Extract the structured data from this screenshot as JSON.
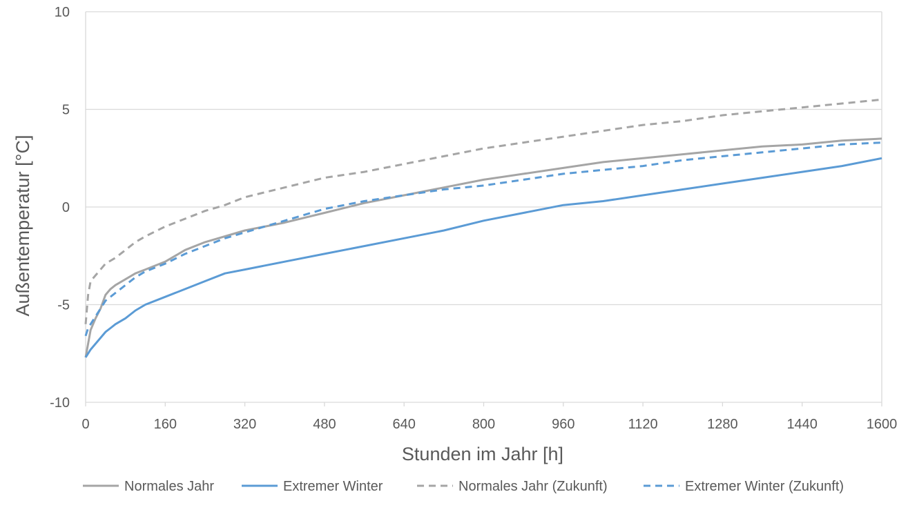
{
  "chart_data": {
    "type": "line",
    "title": "",
    "xlabel": "Stunden im Jahr [h]",
    "ylabel": "Außentemperatur [°C]",
    "xlim": [
      0,
      1600
    ],
    "ylim": [
      -10,
      10
    ],
    "x_ticks": [
      0,
      160,
      320,
      480,
      640,
      800,
      960,
      1120,
      1280,
      1440,
      1600
    ],
    "y_ticks": [
      -10,
      -5,
      0,
      5,
      10
    ],
    "grid": "horizontal",
    "legend_position": "bottom",
    "colors": {
      "gray": "#a5a5a5",
      "blue": "#5b9bd5",
      "grid": "#d9d9d9",
      "text": "#595959"
    },
    "series": [
      {
        "name": "Normales Jahr",
        "color": "#a5a5a5",
        "dash": "solid",
        "x": [
          0,
          5,
          10,
          20,
          30,
          40,
          50,
          60,
          80,
          100,
          120,
          160,
          200,
          240,
          280,
          320,
          400,
          480,
          560,
          640,
          720,
          800,
          880,
          960,
          1040,
          1120,
          1200,
          1280,
          1360,
          1440,
          1520,
          1600
        ],
        "y": [
          -7.7,
          -7.0,
          -6.3,
          -5.7,
          -5.2,
          -4.5,
          -4.2,
          -4.0,
          -3.7,
          -3.4,
          -3.2,
          -2.8,
          -2.2,
          -1.8,
          -1.5,
          -1.2,
          -0.8,
          -0.3,
          0.2,
          0.6,
          1.0,
          1.4,
          1.7,
          2.0,
          2.3,
          2.5,
          2.7,
          2.9,
          3.1,
          3.2,
          3.4,
          3.5
        ]
      },
      {
        "name": "Extremer Winter",
        "color": "#5b9bd5",
        "dash": "solid",
        "x": [
          0,
          5,
          10,
          20,
          30,
          40,
          50,
          60,
          80,
          100,
          120,
          160,
          200,
          240,
          280,
          320,
          400,
          480,
          560,
          640,
          720,
          800,
          880,
          960,
          1040,
          1120,
          1200,
          1280,
          1360,
          1440,
          1520,
          1600
        ],
        "y": [
          -7.7,
          -7.5,
          -7.3,
          -7.0,
          -6.7,
          -6.4,
          -6.2,
          -6.0,
          -5.7,
          -5.3,
          -5.0,
          -4.6,
          -4.2,
          -3.8,
          -3.4,
          -3.2,
          -2.8,
          -2.4,
          -2.0,
          -1.6,
          -1.2,
          -0.7,
          -0.3,
          0.1,
          0.3,
          0.6,
          0.9,
          1.2,
          1.5,
          1.8,
          2.1,
          2.5
        ]
      },
      {
        "name": "Normales Jahr (Zukunft)",
        "color": "#a5a5a5",
        "dash": "dashed",
        "x": [
          0,
          5,
          10,
          20,
          30,
          40,
          60,
          80,
          100,
          120,
          160,
          200,
          240,
          280,
          320,
          400,
          480,
          560,
          640,
          720,
          800,
          880,
          960,
          1040,
          1120,
          1200,
          1280,
          1360,
          1440,
          1520,
          1600
        ],
        "y": [
          -6.0,
          -4.5,
          -3.8,
          -3.5,
          -3.2,
          -2.9,
          -2.6,
          -2.2,
          -1.8,
          -1.5,
          -1.0,
          -0.6,
          -0.2,
          0.1,
          0.5,
          1.0,
          1.5,
          1.8,
          2.2,
          2.6,
          3.0,
          3.3,
          3.6,
          3.9,
          4.2,
          4.4,
          4.7,
          4.9,
          5.1,
          5.3,
          5.5
        ]
      },
      {
        "name": "Extremer Winter (Zukunft)",
        "color": "#5b9bd5",
        "dash": "dashed",
        "x": [
          0,
          5,
          10,
          20,
          30,
          40,
          60,
          80,
          100,
          120,
          160,
          200,
          240,
          280,
          320,
          400,
          480,
          560,
          640,
          720,
          800,
          880,
          960,
          1040,
          1120,
          1200,
          1280,
          1360,
          1440,
          1520,
          1600
        ],
        "y": [
          -6.6,
          -6.2,
          -6.0,
          -5.6,
          -5.2,
          -4.8,
          -4.4,
          -4.0,
          -3.6,
          -3.3,
          -2.9,
          -2.4,
          -2.0,
          -1.6,
          -1.3,
          -0.7,
          -0.1,
          0.3,
          0.6,
          0.9,
          1.1,
          1.4,
          1.7,
          1.9,
          2.1,
          2.4,
          2.6,
          2.8,
          3.0,
          3.2,
          3.3
        ]
      }
    ]
  }
}
